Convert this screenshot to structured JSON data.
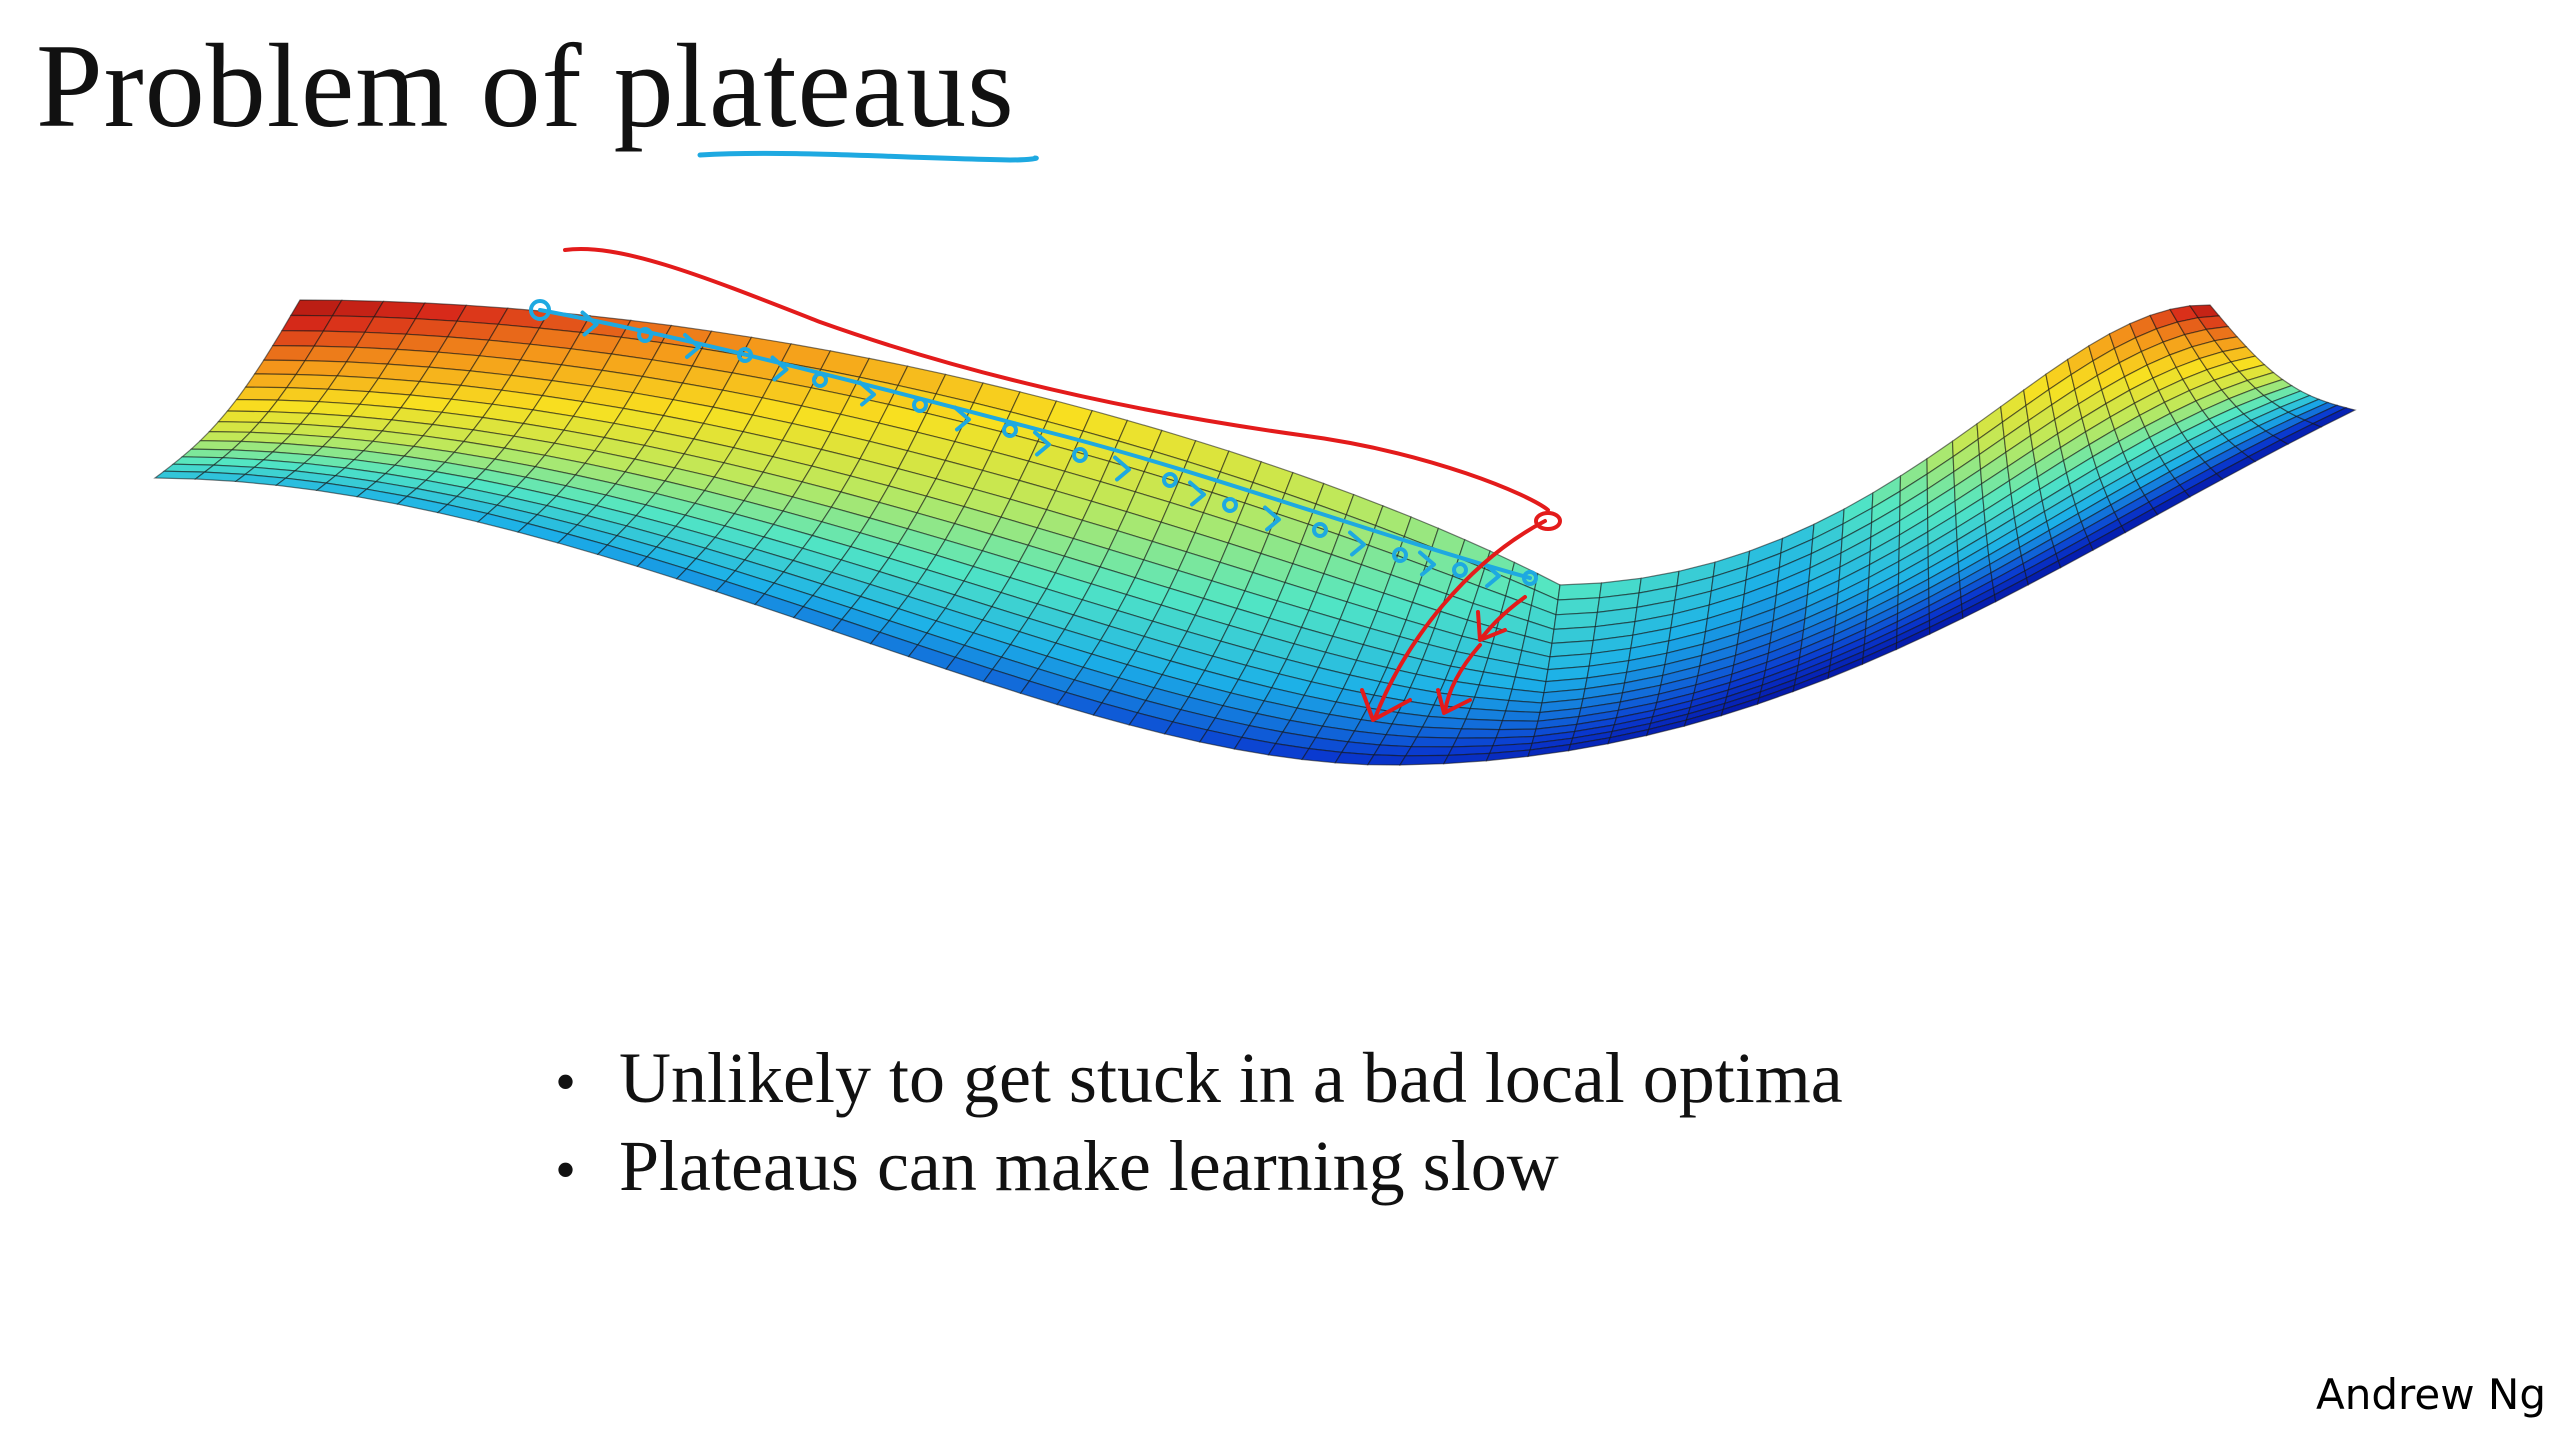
{
  "slide": {
    "title": "Problem of plateaus",
    "author": "Andrew Ng"
  },
  "bullets": [
    {
      "icon": "bullet-dot-icon",
      "text": "Unlikely to get stuck in a bad local optima"
    },
    {
      "icon": "bullet-dot-icon",
      "text": "Plateaus can make learning slow"
    }
  ],
  "figure": {
    "subject": "saddle-shaped loss surface with a long plateau",
    "colormap": [
      "#00008c",
      "#0a3ad0",
      "#1cb0e8",
      "#52e6c4",
      "#bfe85a",
      "#f8e020",
      "#f59a1a",
      "#d82a1a",
      "#8c0a0a"
    ],
    "annotation_colors": {
      "plateau_path": "#1ea9e1",
      "escape_path": "#e31b1b",
      "title_underline": "#1ea9e1"
    }
  }
}
